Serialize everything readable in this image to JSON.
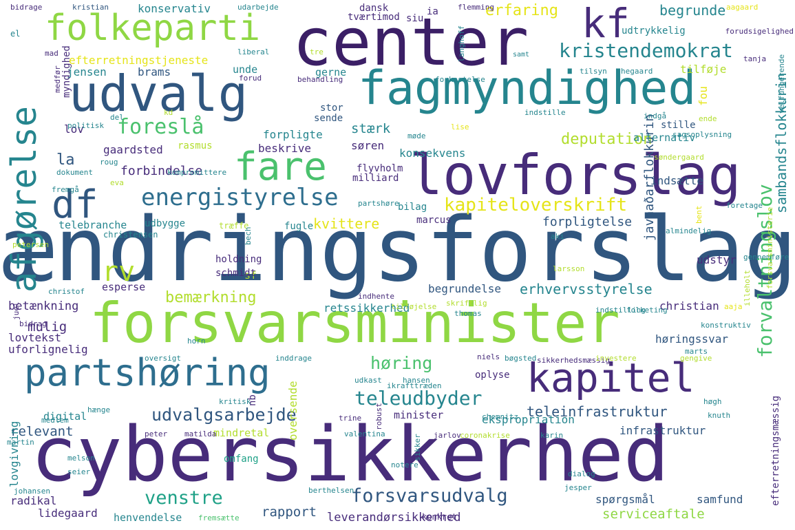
{
  "palette": {
    "dp": "#472c7a",
    "dv": "#3b1f66",
    "bl": "#2e6e8e",
    "bd": "#30567f",
    "tl": "#25858e",
    "tq": "#1fa187",
    "gr": "#4ac16d",
    "lg": "#8fd744",
    "yg": "#b2dd2d",
    "ye": "#e5e419",
    "lv": "#c6e037"
  },
  "words": [
    {
      "text": "ændringsforslag",
      "color": "bd"
    },
    {
      "text": "cybersikkerhed",
      "color": "dp"
    },
    {
      "text": "forsvarsminister",
      "color": "lg"
    },
    {
      "text": "center",
      "color": "dv"
    },
    {
      "text": "lovforslag",
      "color": "dp"
    },
    {
      "text": "fagmyndighed",
      "color": "tl"
    },
    {
      "text": "udvalg",
      "color": "bd"
    },
    {
      "text": "folkeparti",
      "color": "lg"
    },
    {
      "text": "kf",
      "color": "dp"
    },
    {
      "text": "partshøring",
      "color": "bl"
    },
    {
      "text": "kapitel",
      "color": "dp"
    },
    {
      "text": "afgørelse",
      "color": "tl"
    },
    {
      "text": "fare",
      "color": "gr"
    },
    {
      "text": "df",
      "color": "bd"
    },
    {
      "text": "energistyrelse",
      "color": "bl"
    },
    {
      "text": "kristendemokrat",
      "color": "tl"
    },
    {
      "text": "foreslå",
      "color": "gr"
    },
    {
      "text": "kapiteloverskrift",
      "color": "ye"
    },
    {
      "text": "forvaltningslov",
      "color": "gr"
    },
    {
      "text": "teleudbyder",
      "color": "tl"
    },
    {
      "text": "udvalgsarbejde",
      "color": "bd"
    },
    {
      "text": "venstre",
      "color": "tq"
    },
    {
      "text": "forsvarsudvalg",
      "color": "bd"
    },
    {
      "text": "høring",
      "color": "gr"
    },
    {
      "text": "rv",
      "color": "yg"
    },
    {
      "text": "bemærkning",
      "color": "yg"
    },
    {
      "text": "deputation",
      "color": "yg"
    },
    {
      "text": "erfaring",
      "color": "ye"
    },
    {
      "text": "begrunde",
      "color": "tl"
    },
    {
      "text": "sambandsflokkurin",
      "color": "tl"
    },
    {
      "text": "teleinfrastruktur",
      "color": "bd"
    },
    {
      "text": "erhvervsstyrelse",
      "color": "tl"
    },
    {
      "text": "forbindelse",
      "color": "dp"
    },
    {
      "text": "la",
      "color": "bd"
    },
    {
      "text": "kvittere",
      "color": "ye"
    },
    {
      "text": "forpligtelse",
      "color": "bd"
    },
    {
      "text": "javnaðarflokkurin",
      "color": "bd"
    },
    {
      "text": "rapport",
      "color": "bd"
    },
    {
      "text": "serviceaftale",
      "color": "lg"
    },
    {
      "text": "leverandørsikkerhed",
      "color": "dp"
    },
    {
      "text": "relevant",
      "color": "bd"
    },
    {
      "text": "mulig",
      "color": "dp"
    },
    {
      "text": "konsekvens",
      "color": "tl"
    },
    {
      "text": "stærk",
      "color": "tl"
    },
    {
      "text": "infrastruktur",
      "color": "bd"
    },
    {
      "text": "ekspropriation",
      "color": "tl"
    },
    {
      "text": "efterretningsmæssig",
      "color": "dp"
    },
    {
      "text": "lidegaard",
      "color": "dp"
    },
    {
      "text": "henvendelse",
      "color": "tl"
    },
    {
      "text": "radikal",
      "color": "dp"
    },
    {
      "text": "samfund",
      "color": "bd"
    },
    {
      "text": "spørgsmål",
      "color": "bd"
    },
    {
      "text": "betænkning",
      "color": "dp"
    },
    {
      "text": "lovtekst",
      "color": "dp"
    },
    {
      "text": "uforlignelig",
      "color": "dp"
    },
    {
      "text": "retssikkerhed",
      "color": "tl"
    },
    {
      "text": "begrundelse",
      "color": "bd"
    },
    {
      "text": "christian",
      "color": "dp"
    },
    {
      "text": "høringssvar",
      "color": "bd"
    },
    {
      "text": "udstyr",
      "color": "dp"
    },
    {
      "text": "indsætte",
      "color": "bd"
    },
    {
      "text": "fou",
      "color": "ye"
    },
    {
      "text": "alternativ",
      "color": "tl"
    },
    {
      "text": "stille",
      "color": "bd"
    },
    {
      "text": "tilføje",
      "color": "yg"
    },
    {
      "text": "udtrykkelig",
      "color": "tl"
    },
    {
      "text": "konservativ",
      "color": "tl"
    },
    {
      "text": "dansk",
      "color": "dp"
    },
    {
      "text": "tværtimod",
      "color": "dp"
    },
    {
      "text": "siu",
      "color": "dp"
    },
    {
      "text": "ia",
      "color": "dp"
    },
    {
      "text": "efterretningstjeneste",
      "color": "ye"
    },
    {
      "text": "jensen",
      "color": "tl"
    },
    {
      "text": "brams",
      "color": "bd"
    },
    {
      "text": "unde",
      "color": "tl"
    },
    {
      "text": "gerne",
      "color": "tl"
    },
    {
      "text": "stor",
      "color": "bd"
    },
    {
      "text": "sende",
      "color": "bd"
    },
    {
      "text": "forpligte",
      "color": "tl"
    },
    {
      "text": "beskrive",
      "color": "dp"
    },
    {
      "text": "søren",
      "color": "dp"
    },
    {
      "text": "gaardsted",
      "color": "dp"
    },
    {
      "text": "rasmus",
      "color": "yg"
    },
    {
      "text": "flyvholm",
      "color": "dp"
    },
    {
      "text": "milliard",
      "color": "dp"
    },
    {
      "text": "telebranche",
      "color": "tl"
    },
    {
      "text": "oplyse",
      "color": "dp"
    },
    {
      "text": "digital",
      "color": "tl"
    },
    {
      "text": "minister",
      "color": "dp"
    },
    {
      "text": "mindretal",
      "color": "yg"
    },
    {
      "text": "esperse",
      "color": "dp"
    },
    {
      "text": "sf",
      "color": "yg"
    },
    {
      "text": "lov",
      "color": "dp"
    },
    {
      "text": "myndighed",
      "color": "dp"
    },
    {
      "text": "lovgivning",
      "color": "tl"
    },
    {
      "text": "oversende",
      "color": "yg"
    },
    {
      "text": "omfang",
      "color": "tq"
    },
    {
      "text": "nb",
      "color": "dp"
    },
    {
      "text": "bilag",
      "color": "tl"
    },
    {
      "text": "holdning",
      "color": "dp"
    },
    {
      "text": "schmidt",
      "color": "dp"
    },
    {
      "text": "fugle",
      "color": "tl"
    },
    {
      "text": "marcus",
      "color": "dp"
    },
    {
      "text": "udbygge",
      "color": "tl"
    },
    {
      "text": "træffe",
      "color": "yg"
    },
    {
      "text": "christensen",
      "color": "tl"
    },
    {
      "text": "bidrage",
      "color": "dp"
    },
    {
      "text": "kristian",
      "color": "bd"
    },
    {
      "text": "udarbejde",
      "color": "tl"
    },
    {
      "text": "flemming",
      "color": "dp"
    },
    {
      "text": "aagaard",
      "color": "ye"
    },
    {
      "text": "forudsigelighed",
      "color": "dp"
    },
    {
      "text": "el",
      "color": "tl"
    },
    {
      "text": "mad",
      "color": "dp"
    },
    {
      "text": "liberal",
      "color": "tl"
    },
    {
      "text": "tre",
      "color": "yg"
    },
    {
      "text": "tanja",
      "color": "dp"
    },
    {
      "text": "hegaard",
      "color": "tl"
    },
    {
      "text": "tilsyn",
      "color": "tl"
    },
    {
      "text": "behandling",
      "color": "dp"
    },
    {
      "text": "samt",
      "color": "tl"
    },
    {
      "text": "forkastelse",
      "color": "tl"
    },
    {
      "text": "forud",
      "color": "dp"
    },
    {
      "text": "langhoff",
      "color": "tl"
    },
    {
      "text": "medfør",
      "color": "dp"
    },
    {
      "text": "politisk",
      "color": "tl"
    },
    {
      "text": "del",
      "color": "tl"
    },
    {
      "text": "kd",
      "color": "yg"
    },
    {
      "text": "lise",
      "color": "ye"
    },
    {
      "text": "indstille",
      "color": "tl"
    },
    {
      "text": "ende",
      "color": "yg"
    },
    {
      "text": "velfungerende",
      "color": "tl"
    },
    {
      "text": "indgå",
      "color": "tl"
    },
    {
      "text": "sagsoplysning",
      "color": "tl"
    },
    {
      "text": "søndergaard",
      "color": "yg"
    },
    {
      "text": "møde",
      "color": "tl"
    },
    {
      "text": "roug",
      "color": "tl"
    },
    {
      "text": "dokument",
      "color": "tl"
    },
    {
      "text": "kompromittere",
      "color": "tl"
    },
    {
      "text": "eva",
      "color": "yg"
    },
    {
      "text": "fremgå",
      "color": "tl"
    },
    {
      "text": "partshøre",
      "color": "tl"
    },
    {
      "text": "foretage",
      "color": "tl"
    },
    {
      "text": "aki",
      "color": "tl"
    },
    {
      "text": "bent",
      "color": "ye"
    },
    {
      "text": "almindelig",
      "color": "tl"
    },
    {
      "text": "larsson",
      "color": "yg"
    },
    {
      "text": "gennemføre",
      "color": "tl"
    },
    {
      "text": "petersen",
      "color": "yg"
    },
    {
      "text": "christof",
      "color": "tl"
    },
    {
      "text": "bech",
      "color": "tl"
    },
    {
      "text": "tilføjelse",
      "color": "yg"
    },
    {
      "text": "indhente",
      "color": "dp"
    },
    {
      "text": "skriftlig",
      "color": "yg"
    },
    {
      "text": "thomas",
      "color": "tl"
    },
    {
      "text": "folketing",
      "color": "tl"
    },
    {
      "text": "indstilling",
      "color": "tl"
    },
    {
      "text": "aaja",
      "color": "ye"
    },
    {
      "text": "illeholt",
      "color": "yg"
    },
    {
      "text": "forsvarsministerie",
      "color": "yg"
    },
    {
      "text": "konstruktiv",
      "color": "tl"
    },
    {
      "text": "juel",
      "color": "dp"
    },
    {
      "text": "bidrag",
      "color": "dp"
    },
    {
      "text": "horn",
      "color": "tl"
    },
    {
      "text": "oversigt",
      "color": "tl"
    },
    {
      "text": "bøgsted",
      "color": "tl"
    },
    {
      "text": "sikkerhedsmæssig",
      "color": "dp"
    },
    {
      "text": "inddrage",
      "color": "tl"
    },
    {
      "text": "niels",
      "color": "dp"
    },
    {
      "text": "investere",
      "color": "yg"
    },
    {
      "text": "marts",
      "color": "tl"
    },
    {
      "text": "gengive",
      "color": "yg"
    },
    {
      "text": "udkast",
      "color": "tl"
    },
    {
      "text": "hansen",
      "color": "tl"
    },
    {
      "text": "ikrafttræden",
      "color": "tl"
    },
    {
      "text": "høgh",
      "color": "tl"
    },
    {
      "text": "knuth",
      "color": "tl"
    },
    {
      "text": "kritisk",
      "color": "tl"
    },
    {
      "text": "chemnitz",
      "color": "tl"
    },
    {
      "text": "hænge",
      "color": "tl"
    },
    {
      "text": "medlem",
      "color": "tl"
    },
    {
      "text": "trine",
      "color": "dp"
    },
    {
      "text": "peter",
      "color": "dp"
    },
    {
      "text": "matilda",
      "color": "dp"
    },
    {
      "text": "valentina",
      "color": "tl"
    },
    {
      "text": "robust",
      "color": "dp"
    },
    {
      "text": "jarlov",
      "color": "dp"
    },
    {
      "text": "coronakrise",
      "color": "yg"
    },
    {
      "text": "karin",
      "color": "tl"
    },
    {
      "text": "martin",
      "color": "tl"
    },
    {
      "text": "melson",
      "color": "tl"
    },
    {
      "text": "seier",
      "color": "tl"
    },
    {
      "text": "notere",
      "color": "tl"
    },
    {
      "text": "sikker",
      "color": "tl"
    },
    {
      "text": "dialog",
      "color": "tl"
    },
    {
      "text": "jesper",
      "color": "tl"
    },
    {
      "text": "johansen",
      "color": "tl"
    },
    {
      "text": "berthelsen",
      "color": "tl"
    },
    {
      "text": "fremsætte",
      "color": "gr"
    },
    {
      "text": "konkret",
      "color": "dp"
    }
  ]
}
